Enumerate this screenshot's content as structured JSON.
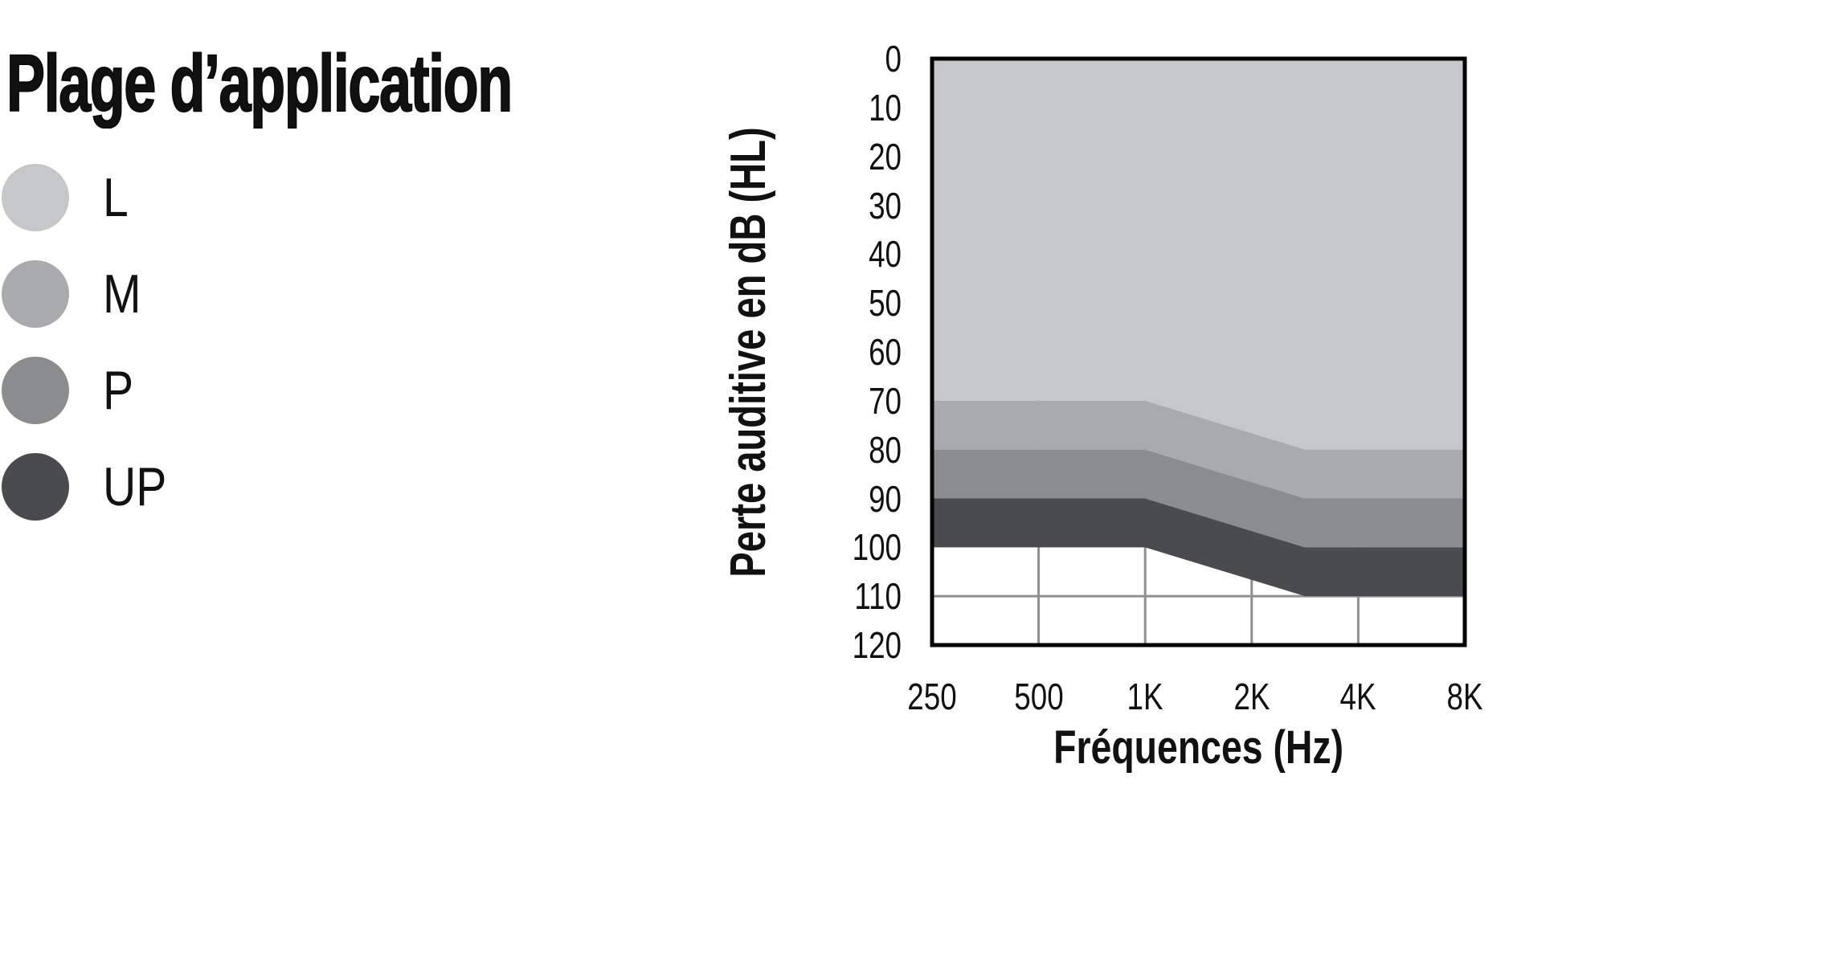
{
  "legend": {
    "title": "Plage d’application",
    "items": [
      {
        "label": "L",
        "color": "#c6c7c9"
      },
      {
        "label": "M",
        "color": "#a9aaad"
      },
      {
        "label": "P",
        "color": "#8b8c8e"
      },
      {
        "label": "UP",
        "color": "#4a4b4e"
      }
    ]
  },
  "chart_data": {
    "type": "area",
    "title": "Plage d’application",
    "xlabel": "Fréquences (Hz)",
    "ylabel": "Perte auditive en dB (HL)",
    "x_tick_labels": [
      "250",
      "500",
      "1K",
      "2K",
      "4K",
      "8K"
    ],
    "y_tick_values": [
      0,
      10,
      20,
      30,
      40,
      50,
      60,
      70,
      80,
      90,
      100,
      110,
      120
    ],
    "ylim": [
      0,
      120
    ],
    "y_axis_inverted": true,
    "x_scale": "octaves-equally-spaced",
    "grid": {
      "vertical_at_labels": [
        "500",
        "1K",
        "2K",
        "4K"
      ],
      "horizontal_at_values": [
        110
      ],
      "color": "#8f8f8f"
    },
    "border_color": "#000000",
    "plot_background": "#ffffff",
    "band_x_breakpoints_ticks": [
      0,
      2,
      3.5,
      5
    ],
    "bands": [
      {
        "name": "L",
        "color": "#c6c7c9",
        "top_db": [
          0,
          0,
          0,
          0
        ],
        "bottom_db": [
          70,
          70,
          80,
          80
        ]
      },
      {
        "name": "M",
        "color": "#a9aaad",
        "top_db": [
          70,
          70,
          80,
          80
        ],
        "bottom_db": [
          80,
          80,
          90,
          90
        ]
      },
      {
        "name": "P",
        "color": "#8b8c8e",
        "top_db": [
          80,
          80,
          90,
          90
        ],
        "bottom_db": [
          90,
          90,
          100,
          100
        ]
      },
      {
        "name": "UP",
        "color": "#4a4b4e",
        "top_db": [
          90,
          90,
          100,
          100
        ],
        "bottom_db": [
          100,
          100,
          110,
          110
        ]
      }
    ]
  }
}
